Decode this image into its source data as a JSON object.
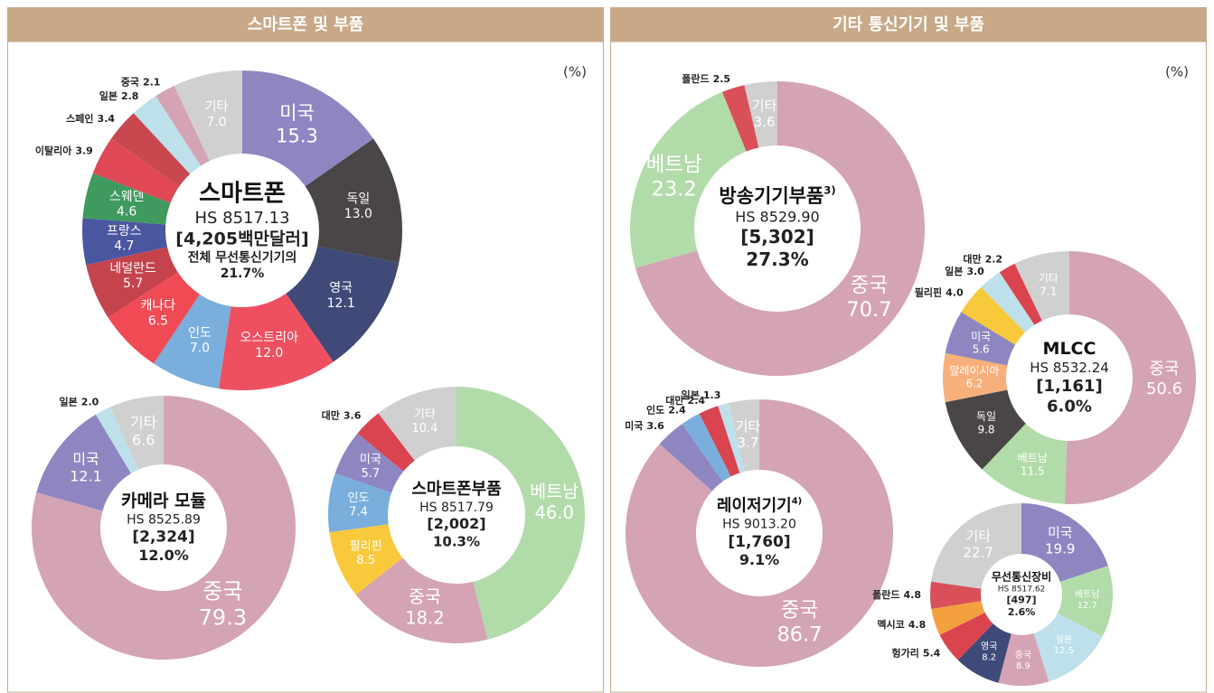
{
  "panels": [
    {
      "title": "스마트폰 및 부품",
      "unit": "(%)"
    },
    {
      "title": "기타 통신기기 및 부품",
      "unit": "(%)"
    }
  ],
  "chart_data": [
    {
      "type": "pie",
      "title": "스마트폰",
      "center": [
        "HS 8517.13",
        "[4,205백만달러]",
        "전체 무선통신기기의",
        "21.7%"
      ],
      "categories": [
        "미국",
        "독일",
        "영국",
        "오스트리아",
        "인도",
        "캐나다",
        "네덜란드",
        "프랑스",
        "스웨덴",
        "이탈리아",
        "스페인",
        "일본",
        "중국",
        "기타"
      ],
      "values": [
        15.3,
        13.0,
        12.1,
        12.0,
        7.0,
        6.5,
        5.7,
        4.7,
        4.6,
        3.9,
        3.4,
        2.8,
        2.1,
        7.0
      ],
      "value_labels": [
        "15.3",
        "13.0",
        "12.1",
        "12.0",
        "7.0",
        "6.5",
        "5.7",
        "4.7",
        "4.6",
        "3.9",
        "3.4",
        "2.8",
        "2.1",
        "7.0"
      ],
      "colors": [
        "#8e86c1",
        "#4a4546",
        "#3f4a78",
        "#ef5060",
        "#7aaedc",
        "#f04a55",
        "#c4434d",
        "#4b56a0",
        "#3f9a5e",
        "#e04858",
        "#c94850",
        "#bde0ea",
        "#d4a3b4",
        "#d0d0d0"
      ]
    },
    {
      "type": "pie",
      "title": "카메라 모듈",
      "center": [
        "HS 8525.89",
        "[2,324]",
        "12.0%"
      ],
      "categories": [
        "중국",
        "미국",
        "일본",
        "기타"
      ],
      "values": [
        79.3,
        12.1,
        2.0,
        6.6
      ],
      "value_labels": [
        "79.3",
        "12.1",
        "2.0",
        "6.6"
      ],
      "colors": [
        "#d4a3b4",
        "#8e86c1",
        "#bde0ea",
        "#d0d0d0"
      ]
    },
    {
      "type": "pie",
      "title": "스마트폰부품",
      "center": [
        "HS 8517.79",
        "[2,002]",
        "10.3%"
      ],
      "categories": [
        "베트남",
        "중국",
        "필리핀",
        "인도",
        "미국",
        "대만",
        "기타"
      ],
      "values": [
        46.0,
        18.2,
        8.5,
        7.4,
        5.7,
        3.6,
        10.4
      ],
      "value_labels": [
        "46.0",
        "18.2",
        "8.5",
        "7.4",
        "5.7",
        "3.6",
        "10.4"
      ],
      "colors": [
        "#b2dbaa",
        "#d4a3b4",
        "#f9c93c",
        "#7aaedc",
        "#8e86c1",
        "#d9444f",
        "#d0d0d0"
      ]
    },
    {
      "type": "pie",
      "title": "방송기기부품",
      "note": "3)",
      "center": [
        "HS 8529.90",
        "[5,302]",
        "27.3%"
      ],
      "categories": [
        "중국",
        "베트남",
        "폴란드",
        "기타"
      ],
      "values": [
        70.7,
        23.2,
        2.5,
        3.6
      ],
      "value_labels": [
        "70.7",
        "23.2",
        "2.5",
        "3.6"
      ],
      "colors": [
        "#d4a3b4",
        "#b2dbaa",
        "#d9505a",
        "#d0d0d0"
      ]
    },
    {
      "type": "pie",
      "title": "MLCC",
      "center": [
        "HS 8532.24",
        "[1,161]",
        "6.0%"
      ],
      "categories": [
        "중국",
        "베트남",
        "독일",
        "말레이시아",
        "미국",
        "필리핀",
        "일본",
        "대만",
        "기타"
      ],
      "values": [
        50.6,
        11.5,
        9.8,
        6.2,
        5.6,
        4.0,
        3.0,
        2.2,
        7.1
      ],
      "value_labels": [
        "50.6",
        "11.5",
        "9.8",
        "6.2",
        "5.6",
        "4.0",
        "3.0",
        "2.2",
        "7.1"
      ],
      "colors": [
        "#d4a3b4",
        "#b2dbaa",
        "#4a4546",
        "#f7b07c",
        "#8e86c1",
        "#f9c93c",
        "#bde0ea",
        "#d9444f",
        "#d0d0d0"
      ]
    },
    {
      "type": "pie",
      "title": "레이저기기",
      "note": "4)",
      "center": [
        "HS 9013.20",
        "[1,760]",
        "9.1%"
      ],
      "categories": [
        "중국",
        "미국",
        "인도",
        "대만",
        "일본",
        "기타"
      ],
      "values": [
        86.7,
        3.6,
        2.4,
        2.4,
        1.3,
        3.7
      ],
      "value_labels": [
        "86.7",
        "3.6",
        "2.4",
        "2.4",
        "1.3",
        "3.7"
      ],
      "colors": [
        "#d4a3b4",
        "#8e86c1",
        "#7aaedc",
        "#d9444f",
        "#bde0ea",
        "#d0d0d0"
      ]
    },
    {
      "type": "pie",
      "title": "무선통신장비",
      "center": [
        "HS 8517.62",
        "[497]",
        "2.6%"
      ],
      "categories": [
        "미국",
        "베트남",
        "일본",
        "중국",
        "영국",
        "헝가리",
        "멕시코",
        "폴란드",
        "기타"
      ],
      "values": [
        19.9,
        12.7,
        12.5,
        8.9,
        8.2,
        5.4,
        4.8,
        4.8,
        22.7
      ],
      "value_labels": [
        "19.9",
        "12.7",
        "12.5",
        "8.9",
        "8.2",
        "5.4",
        "4.8",
        "4.8",
        "22.7"
      ],
      "colors": [
        "#8e86c1",
        "#b2dbaa",
        "#bde0ea",
        "#d4a3b4",
        "#3f4a78",
        "#d9444f",
        "#f5a040",
        "#d9505a",
        "#d0d0d0"
      ]
    }
  ]
}
